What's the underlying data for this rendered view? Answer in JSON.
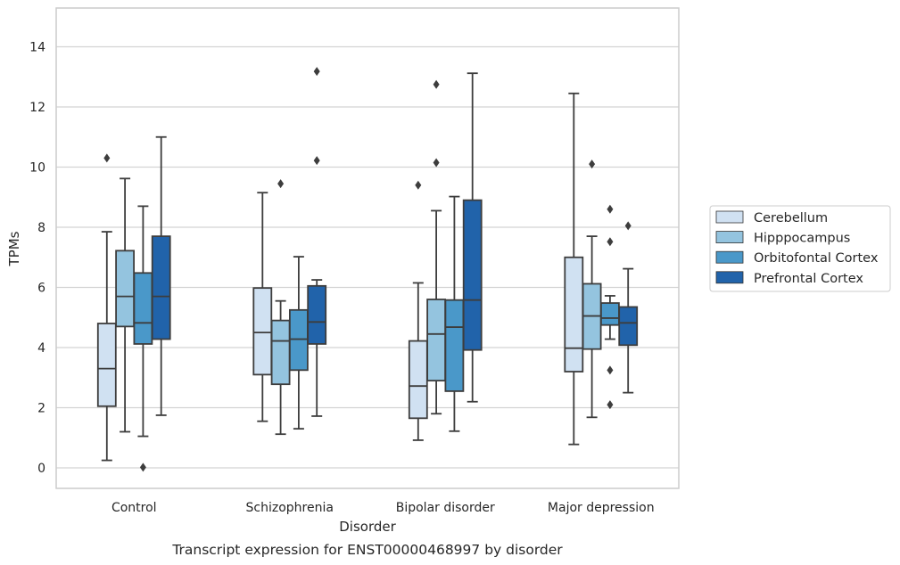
{
  "chart_data": {
    "type": "box",
    "title": "",
    "caption": "Transcript expression for ENST00000468997 by disorder",
    "xlabel": "Disorder",
    "ylabel": "TPMs",
    "ylim": [
      -0.7,
      15.3
    ],
    "yticks": [
      0,
      2,
      4,
      6,
      8,
      10,
      12,
      14
    ],
    "grid": "horizontal",
    "legend_position": "right",
    "categories": [
      "Control",
      "Schizophrenia",
      "Bipolar disorder",
      "Major depression"
    ],
    "series": [
      {
        "name": "Cerebellum",
        "color": "#d0e1f2",
        "boxes": [
          {
            "whislo": 0.25,
            "q1": 2.05,
            "med": 3.3,
            "q3": 4.8,
            "whishi": 7.85,
            "fliers": [
              10.3
            ]
          },
          {
            "whislo": 1.55,
            "q1": 3.1,
            "med": 4.5,
            "q3": 5.98,
            "whishi": 9.15,
            "fliers": []
          },
          {
            "whislo": 0.92,
            "q1": 1.65,
            "med": 2.72,
            "q3": 4.22,
            "whishi": 6.15,
            "fliers": [
              9.4
            ]
          },
          {
            "whislo": 0.78,
            "q1": 3.2,
            "med": 3.98,
            "q3": 7.0,
            "whishi": 12.45,
            "fliers": []
          }
        ]
      },
      {
        "name": "Hipppocampus",
        "color": "#94c4df",
        "boxes": [
          {
            "whislo": 1.2,
            "q1": 4.7,
            "med": 5.7,
            "q3": 7.22,
            "whishi": 9.62,
            "fliers": []
          },
          {
            "whislo": 1.12,
            "q1": 2.78,
            "med": 4.22,
            "q3": 4.9,
            "whishi": 5.55,
            "fliers": [
              9.45
            ]
          },
          {
            "whislo": 1.8,
            "q1": 2.9,
            "med": 4.45,
            "q3": 5.6,
            "whishi": 8.55,
            "fliers": [
              10.15,
              12.75
            ]
          },
          {
            "whislo": 1.68,
            "q1": 3.95,
            "med": 5.05,
            "q3": 6.12,
            "whishi": 7.7,
            "fliers": [
              10.1
            ]
          }
        ]
      },
      {
        "name": "Orbitofontal Cortex",
        "color": "#4a98c9",
        "boxes": [
          {
            "whislo": 1.05,
            "q1": 4.12,
            "med": 4.82,
            "q3": 6.48,
            "whishi": 8.7,
            "fliers": [
              0.02
            ]
          },
          {
            "whislo": 1.3,
            "q1": 3.25,
            "med": 4.28,
            "q3": 5.25,
            "whishi": 7.02,
            "fliers": []
          },
          {
            "whislo": 1.22,
            "q1": 2.55,
            "med": 4.68,
            "q3": 5.58,
            "whishi": 9.02,
            "fliers": []
          },
          {
            "whislo": 4.28,
            "q1": 4.75,
            "med": 4.98,
            "q3": 5.48,
            "whishi": 5.72,
            "fliers": [
              2.1,
              3.25,
              7.52,
              8.6
            ]
          }
        ]
      },
      {
        "name": "Prefrontal Cortex",
        "color": "#2163aa",
        "boxes": [
          {
            "whislo": 1.75,
            "q1": 4.28,
            "med": 5.7,
            "q3": 7.7,
            "whishi": 11.0,
            "fliers": []
          },
          {
            "whislo": 1.72,
            "q1": 4.12,
            "med": 4.85,
            "q3": 6.05,
            "whishi": 6.25,
            "fliers": [
              10.22,
              13.18
            ]
          },
          {
            "whislo": 2.2,
            "q1": 3.92,
            "med": 5.58,
            "q3": 8.9,
            "whishi": 13.12,
            "fliers": []
          },
          {
            "whislo": 2.5,
            "q1": 4.08,
            "med": 4.82,
            "q3": 5.35,
            "whishi": 6.62,
            "fliers": [
              8.05
            ]
          }
        ]
      }
    ]
  }
}
